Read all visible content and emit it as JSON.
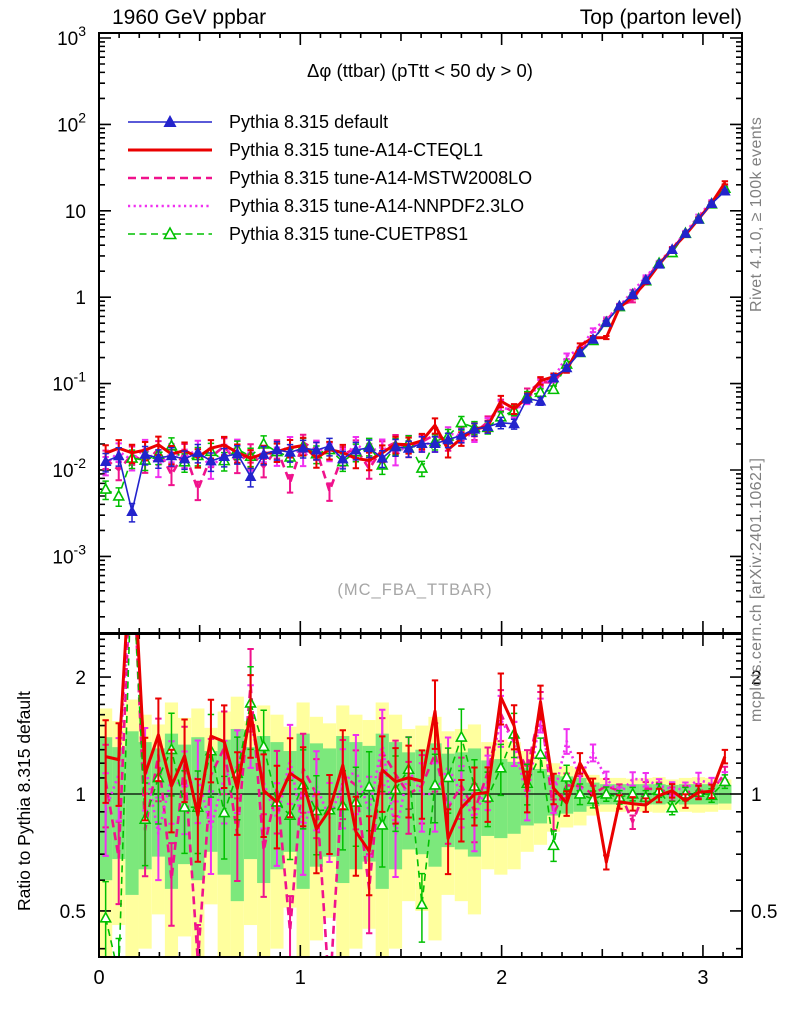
{
  "header": {
    "title_left": "1960 GeV ppbar",
    "title_right": "Top (parton level)"
  },
  "annotation": "Δφ (ttbar) (pTtt < 50 dy > 0)",
  "watermark": "(MC_FBA_TTBAR)",
  "side_top": "Rivet 4.1.0, ≥ 100k events",
  "side_bottom": "mcplots.cern.ch [arXiv:2401.10621]",
  "ratio_ylabel": "Ratio to Pythia 8.315 default",
  "colors": {
    "frame": "#000000",
    "band_yellow": "#ffff9e",
    "band_green": "#7ce87c",
    "ref_line": "#000000"
  },
  "chart_data": {
    "type": "line",
    "title": "Δφ (ttbar) (pTtt < 50 dy > 0)",
    "xlabel": "",
    "ylabel": "",
    "xlim": [
      0,
      3.194
    ],
    "main_y_log_range": [
      -3.886,
      3.06
    ],
    "ratio_log_range": [
      0.381,
      2.58
    ],
    "x_ticks": [
      0,
      1,
      2,
      3
    ],
    "y_tick_exponents": [
      3,
      2,
      1,
      0,
      -1,
      -2,
      -3
    ],
    "ratio_ticks": [
      {
        "v": 2,
        "label": "2"
      },
      {
        "v": 1,
        "label": "1"
      },
      {
        "v": 0.5,
        "label": "0.5"
      }
    ],
    "legend_position": "top-left",
    "grid": false,
    "x": [
      0.033,
      0.098,
      0.164,
      0.229,
      0.295,
      0.36,
      0.425,
      0.491,
      0.556,
      0.622,
      0.687,
      0.753,
      0.818,
      0.884,
      0.949,
      1.014,
      1.08,
      1.145,
      1.211,
      1.276,
      1.342,
      1.407,
      1.473,
      1.538,
      1.604,
      1.669,
      1.734,
      1.8,
      1.865,
      1.931,
      1.996,
      2.062,
      2.127,
      2.193,
      2.258,
      2.323,
      2.389,
      2.454,
      2.52,
      2.585,
      2.651,
      2.716,
      2.782,
      2.847,
      2.913,
      2.978,
      3.043,
      3.109
    ],
    "bin_half_width": 0.0327,
    "rel_err": [
      0.24,
      0.24,
      0.24,
      0.24,
      0.24,
      0.24,
      0.24,
      0.24,
      0.24,
      0.24,
      0.24,
      0.24,
      0.24,
      0.24,
      0.23,
      0.23,
      0.23,
      0.23,
      0.23,
      0.23,
      0.23,
      0.22,
      0.22,
      0.21,
      0.2,
      0.2,
      0.19,
      0.18,
      0.17,
      0.16,
      0.15,
      0.13,
      0.12,
      0.1,
      0.09,
      0.073,
      0.061,
      0.05,
      0.042,
      0.04,
      0.04,
      0.04,
      0.04,
      0.04,
      0.04,
      0.04,
      0.04,
      0.04
    ],
    "series": [
      {
        "name": "Pythia 8.315 default",
        "color": "#2323cc",
        "style": "solid",
        "width": 1.6,
        "marker": "triangle-filled",
        "values": [
          0.0125,
          0.0146,
          0.0033,
          0.0151,
          0.0138,
          0.0146,
          0.0134,
          0.0159,
          0.0127,
          0.0143,
          0.0154,
          0.0084,
          0.0151,
          0.0171,
          0.016,
          0.0179,
          0.017,
          0.0189,
          0.0134,
          0.017,
          0.0181,
          0.0137,
          0.0185,
          0.0178,
          0.0202,
          0.0202,
          0.0224,
          0.0252,
          0.0296,
          0.0317,
          0.0353,
          0.0342,
          0.0676,
          0.0625,
          0.116,
          0.152,
          0.229,
          0.325,
          0.511,
          0.791,
          1.07,
          1.58,
          2.41,
          3.56,
          5.47,
          7.95,
          12.1,
          16.9
        ]
      },
      {
        "name": "Pythia 8.315 tune-A14-CTEQL1",
        "color": "#ea0000",
        "style": "solid",
        "width": 3,
        "marker": "none",
        "values": [
          0.0156,
          0.0179,
          0.0158,
          0.017,
          0.0196,
          0.0153,
          0.0168,
          0.014,
          0.0179,
          0.0195,
          0.0159,
          0.0137,
          0.0154,
          0.0163,
          0.0181,
          0.0192,
          0.0138,
          0.0172,
          0.0159,
          0.0136,
          0.0129,
          0.0158,
          0.0199,
          0.0196,
          0.0218,
          0.033,
          0.0172,
          0.0232,
          0.0296,
          0.032,
          0.0627,
          0.0512,
          0.0689,
          0.108,
          0.12,
          0.144,
          0.275,
          0.339,
          0.341,
          0.755,
          1.01,
          1.48,
          2.39,
          3.63,
          5.25,
          8.03,
          12.3,
          21.1
        ]
      },
      {
        "name": "Pythia 8.315 tune-A14-MSTW2008LO",
        "color": "#f0128c",
        "style": "dashed",
        "width": 2.6,
        "marker": "none",
        "values": [
          0.0135,
          0.01,
          0.0151,
          0.0122,
          0.0174,
          0.0088,
          0.0161,
          0.0059,
          0.0142,
          0.0188,
          0.0121,
          0.016,
          0.0108,
          0.0178,
          0.0071,
          0.0208,
          0.017,
          0.0057,
          0.015,
          0.0179,
          0.0103,
          0.0176,
          0.0208,
          0.0178,
          0.0212,
          0.0256,
          0.0206,
          0.0265,
          0.0268,
          0.036,
          0.0568,
          0.0464,
          0.0783,
          0.104,
          0.103,
          0.16,
          0.24,
          0.325,
          0.536,
          0.805,
          0.906,
          1.63,
          2.48,
          3.56,
          5.52,
          8.11,
          12.3,
          19.1
        ]
      },
      {
        "name": "Pythia 8.315 tune-A14-NNPDF2.3LO",
        "color": "#f030f0",
        "style": "dotted",
        "width": 2.6,
        "marker": "none",
        "values": [
          0.0114,
          0.0164,
          0.013,
          0.018,
          0.0109,
          0.0161,
          0.0139,
          0.0176,
          0.0104,
          0.0158,
          0.0181,
          0.0129,
          0.0162,
          0.0147,
          0.0196,
          0.0144,
          0.0178,
          0.0164,
          0.0142,
          0.0196,
          0.0163,
          0.0185,
          0.0145,
          0.0206,
          0.0202,
          0.0202,
          0.0263,
          0.0252,
          0.0254,
          0.0343,
          0.0549,
          0.0464,
          0.0657,
          0.1,
          0.114,
          0.208,
          0.252,
          0.415,
          0.56,
          0.791,
          1.17,
          1.72,
          2.53,
          3.67,
          5.63,
          8.67,
          12.8,
          18.5
        ]
      },
      {
        "name": "Pythia 8.315 tune-CUETP8S1",
        "color": "#00c000",
        "style": "dashed",
        "width": 1.6,
        "marker": "triangle-open",
        "values": [
          0.006,
          0.005,
          0.0137,
          0.013,
          0.0152,
          0.019,
          0.0124,
          0.0147,
          0.0164,
          0.0128,
          0.0174,
          0.0144,
          0.02,
          0.0163,
          0.0141,
          0.0189,
          0.0154,
          0.0172,
          0.0125,
          0.0162,
          0.0189,
          0.0114,
          0.019,
          0.0206,
          0.0105,
          0.0213,
          0.0247,
          0.0353,
          0.031,
          0.0311,
          0.0412,
          0.0488,
          0.072,
          0.0791,
          0.0855,
          0.168,
          0.229,
          0.315,
          0.511,
          0.776,
          1.07,
          1.55,
          2.46,
          3.28,
          5.47,
          8.03,
          12.0,
          18.2
        ]
      }
    ],
    "ratio_reference": "Pythia 8.315 default",
    "bands": {
      "green_half": [
        0.4,
        0.32,
        0.45,
        0.36,
        0.31,
        0.43,
        0.34,
        0.4,
        0.29,
        0.38,
        0.47,
        0.32,
        0.41,
        0.36,
        0.29,
        0.43,
        0.35,
        0.31,
        0.41,
        0.36,
        0.33,
        0.43,
        0.36,
        0.28,
        0.3,
        0.35,
        0.27,
        0.28,
        0.31,
        0.22,
        0.23,
        0.21,
        0.17,
        0.16,
        0.12,
        0.11,
        0.1,
        0.07,
        0.06,
        0.06,
        0.06,
        0.06,
        0.06,
        0.055,
        0.06,
        0.06,
        0.06,
        0.055
      ],
      "yellow_half": [
        0.66,
        0.54,
        0.75,
        0.6,
        0.51,
        0.72,
        0.57,
        0.66,
        0.48,
        0.63,
        0.78,
        0.54,
        0.69,
        0.6,
        0.49,
        0.72,
        0.58,
        0.52,
        0.69,
        0.6,
        0.55,
        0.72,
        0.6,
        0.47,
        0.5,
        0.58,
        0.45,
        0.47,
        0.51,
        0.36,
        0.38,
        0.36,
        0.29,
        0.26,
        0.2,
        0.18,
        0.17,
        0.12,
        0.1,
        0.1,
        0.095,
        0.1,
        0.105,
        0.09,
        0.1,
        0.105,
        0.1,
        0.09
      ]
    }
  }
}
